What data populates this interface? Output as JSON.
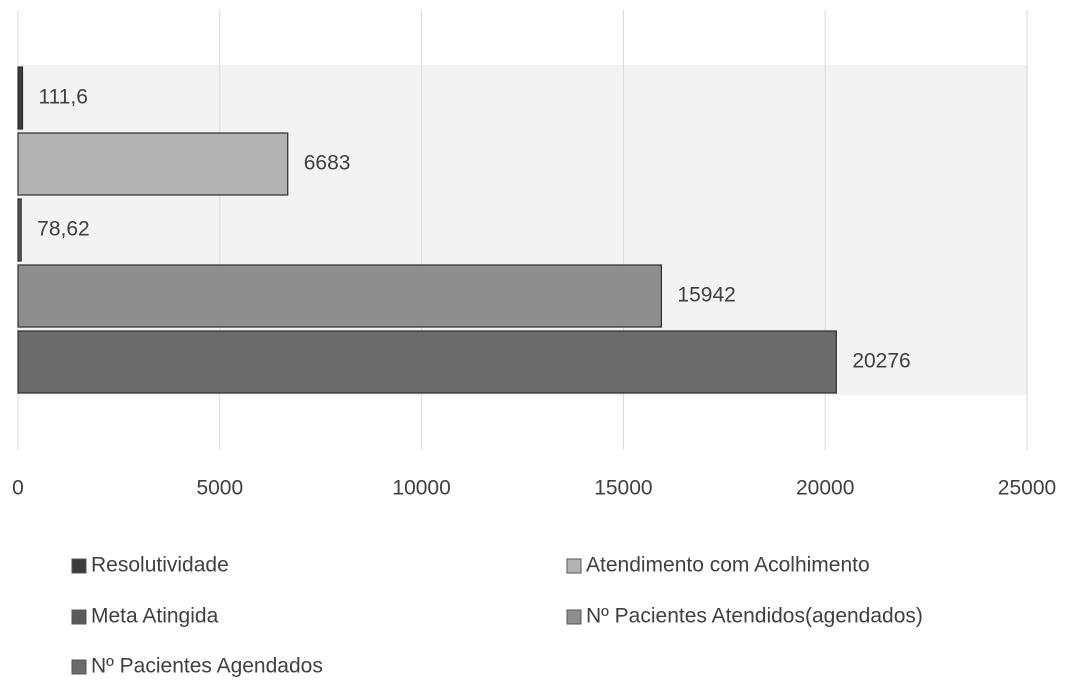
{
  "chart_data": {
    "type": "bar",
    "orientation": "horizontal",
    "series": [
      {
        "name": "Resolutividade",
        "color": "#3c3c3c",
        "values": [
          111.6
        ],
        "value_labels": [
          "111,6"
        ]
      },
      {
        "name": "Atendimento com Acolhimento",
        "color": "#b3b3b3",
        "values": [
          6683
        ]
      },
      {
        "name": "Meta Atingida",
        "color": "#5a5a5a",
        "values": [
          78.62
        ],
        "value_labels": [
          "78,62"
        ]
      },
      {
        "name": "Nº Pacientes Atendidos(agendados)",
        "color": "#8e8e8e",
        "values": [
          15942
        ]
      },
      {
        "name": "Nº Pacientes Agendados",
        "color": "#6b6b6b",
        "values": [
          20276
        ]
      }
    ],
    "xlim": [
      0,
      25000
    ],
    "xticks": [
      0,
      5000,
      10000,
      15000,
      20000,
      25000
    ],
    "grid": true,
    "legend": "bottom"
  }
}
